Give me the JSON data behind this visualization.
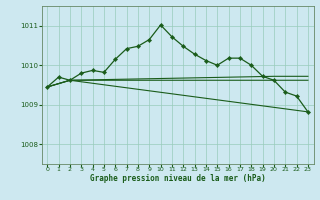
{
  "title": "Graphe pression niveau de la mer (hPa)",
  "background_color": "#cde8f0",
  "grid_color": "#99ccbb",
  "line_color": "#1a5c1a",
  "ylim": [
    1007.5,
    1011.5
  ],
  "yticks": [
    1008,
    1009,
    1010,
    1011
  ],
  "xlim": [
    -0.5,
    23.5
  ],
  "xticks": [
    0,
    1,
    2,
    3,
    4,
    5,
    6,
    7,
    8,
    9,
    10,
    11,
    12,
    13,
    14,
    15,
    16,
    17,
    18,
    19,
    20,
    21,
    22,
    23
  ],
  "main_x": [
    0,
    1,
    2,
    3,
    4,
    5,
    6,
    7,
    8,
    9,
    10,
    11,
    12,
    13,
    14,
    15,
    16,
    17,
    18,
    19,
    20,
    21,
    22,
    23
  ],
  "main_y": [
    1009.45,
    1009.7,
    1009.62,
    1009.8,
    1009.87,
    1009.82,
    1010.15,
    1010.42,
    1010.48,
    1010.65,
    1011.02,
    1010.72,
    1010.48,
    1010.28,
    1010.12,
    1010.0,
    1010.18,
    1010.18,
    1010.0,
    1009.72,
    1009.62,
    1009.32,
    1009.22,
    1008.82
  ],
  "line2_x": [
    0,
    2,
    23
  ],
  "line2_y": [
    1009.45,
    1009.62,
    1008.82
  ],
  "line3_x": [
    0,
    2,
    20,
    23
  ],
  "line3_y": [
    1009.45,
    1009.62,
    1009.62,
    1009.62
  ],
  "line4_x": [
    0,
    2,
    20,
    23
  ],
  "line4_y": [
    1009.45,
    1009.62,
    1009.72,
    1009.72
  ],
  "bottom_label_color": "#1a5c1a",
  "tick_label_color": "#1a5c1a"
}
